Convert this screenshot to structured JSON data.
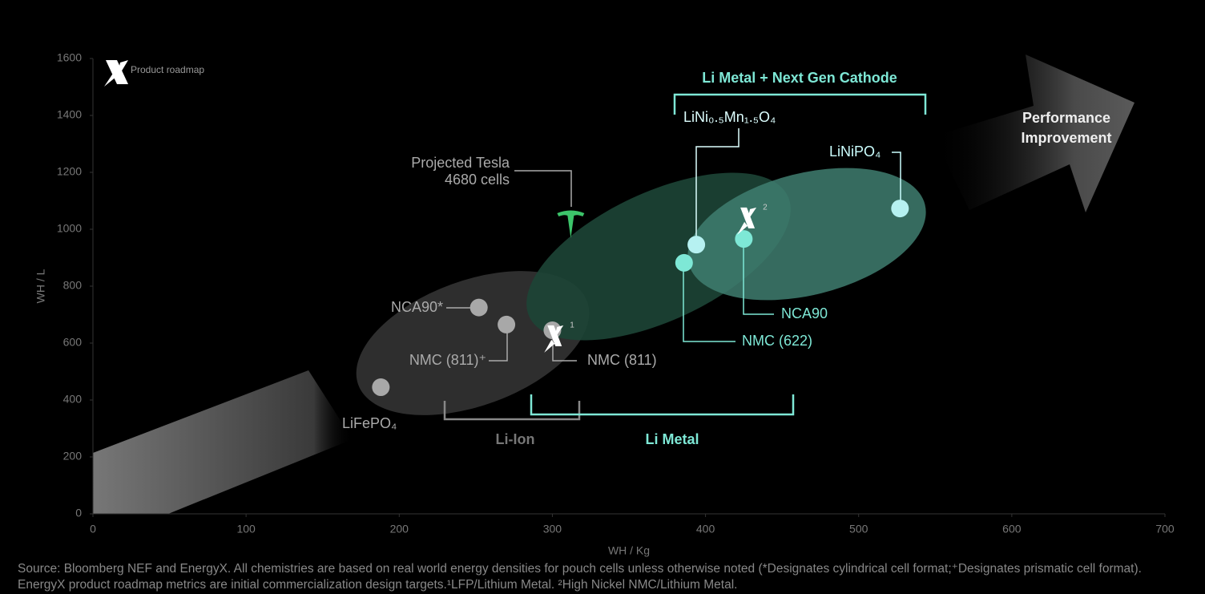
{
  "chart_data": {
    "type": "scatter",
    "x_label": "WH / Kg",
    "y_label": "WH / L",
    "xlim": [
      0,
      700
    ],
    "xticks": [
      0,
      100,
      200,
      300,
      400,
      500,
      600,
      700
    ],
    "ylim": [
      0,
      1600
    ],
    "yticks": [
      0,
      200,
      400,
      600,
      800,
      1000,
      1200,
      1400,
      1600
    ],
    "points": [
      {
        "label": "NCA90*",
        "x": 252,
        "y": 725,
        "color": "#a8a8a8"
      },
      {
        "label": "NMC (811)⁺",
        "x": 270,
        "y": 665,
        "color": "#a8a8a8"
      },
      {
        "label": "NMC (811)",
        "x": 300,
        "y": 645,
        "color": "#a8a8a8"
      },
      {
        "label": "LiFePO₄",
        "x": 188,
        "y": 445,
        "color": "#a8a8a8"
      },
      {
        "label": "NMC (622)",
        "x": 386,
        "y": 882,
        "color": "#7ee8d6"
      },
      {
        "label": "LiNi₀.₅Mn₁.₅O₄",
        "x": 394,
        "y": 946,
        "color": "#b6f1f1"
      },
      {
        "label": "NCA90",
        "x": 425,
        "y": 966,
        "color": "#7ee8d6"
      },
      {
        "label": "LiNiPO₄",
        "x": 527,
        "y": 1073,
        "color": "#b6f1f1"
      }
    ],
    "roadmap_markers": [
      {
        "note": "1",
        "x": 302,
        "y": 623
      },
      {
        "note": "2",
        "x": 428,
        "y": 1037
      }
    ],
    "tesla": {
      "label": [
        "Projected Tesla",
        "4680 cells"
      ],
      "x": 312,
      "y": 1031,
      "color": "#3cc46a"
    },
    "product_roadmap": "Product roadmap",
    "group_top": "Li Metal + Next Gen Cathode",
    "group_li_ion": "Li-Ion",
    "group_li_metal": "Li Metal",
    "arrow_label": [
      "Performance",
      "Improvement"
    ],
    "source": "Source: Bloomberg NEF and EnergyX. All chemistries are based on real world energy densities for pouch cells unless otherwise noted (*Designates cylindrical cell format;⁺Designates prismatic cell format). EnergyX product roadmap metrics are initial commercialization design targets.¹LFP/Lithium Metal. ²High Nickel NMC/Lithium Metal."
  }
}
